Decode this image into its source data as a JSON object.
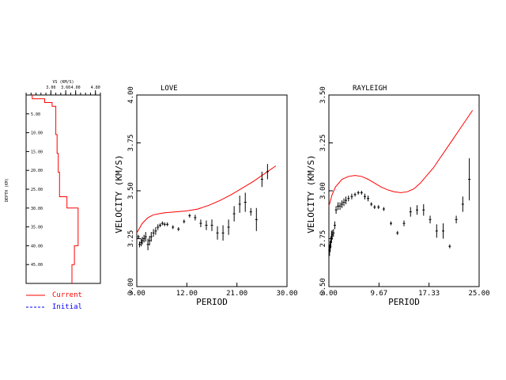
{
  "chart_data": [
    {
      "type": "line",
      "panel": "model",
      "title": "VS (KM/S)",
      "xlabel": "VS (KM/S)",
      "ylabel": "DEPTH (KM)",
      "xlim": [
        2.0,
        5.0
      ],
      "ylim": [
        0,
        50
      ],
      "x_ticks": [
        "3.00",
        "3.60",
        "4.00",
        "4.80"
      ],
      "x_tick_values": [
        3.0,
        3.6,
        4.0,
        4.8
      ],
      "y_ticks": [
        "5.00",
        "10.00",
        "15.00",
        "20.00",
        "25.00",
        "30.00",
        "35.00",
        "40.00",
        "45.00"
      ],
      "y_tick_values": [
        5,
        10,
        15,
        20,
        25,
        30,
        35,
        40,
        45
      ],
      "legend": [
        {
          "label": "Current",
          "color": "#ff0000",
          "style": "solid"
        },
        {
          "label": "Initial",
          "color": "#0000ff",
          "style": "dashed"
        }
      ],
      "series": [
        {
          "name": "Current",
          "color": "#ff0000",
          "profile": [
            [
              2.25,
              0
            ],
            [
              2.25,
              1
            ],
            [
              2.75,
              1
            ],
            [
              2.75,
              2
            ],
            [
              3.05,
              2
            ],
            [
              3.05,
              3
            ],
            [
              3.2,
              3
            ],
            [
              3.2,
              10.5
            ],
            [
              3.25,
              10.5
            ],
            [
              3.25,
              15.5
            ],
            [
              3.3,
              15.5
            ],
            [
              3.3,
              20.5
            ],
            [
              3.35,
              20.5
            ],
            [
              3.35,
              27
            ],
            [
              3.65,
              27
            ],
            [
              3.65,
              30
            ],
            [
              4.1,
              30
            ],
            [
              4.1,
              40
            ],
            [
              3.95,
              40
            ],
            [
              3.95,
              45
            ],
            [
              3.85,
              45
            ],
            [
              3.85,
              50
            ]
          ]
        }
      ]
    },
    {
      "type": "scatter",
      "panel": "love",
      "title": "LOVE",
      "xlabel": "PERIOD",
      "ylabel": "VELOCITY (KM/S)",
      "xlim": [
        3.0,
        30.0
      ],
      "ylim": [
        3.0,
        4.0
      ],
      "x_ticks": [
        "3.00",
        "12.00",
        "21.00",
        "30.00"
      ],
      "x_tick_values": [
        3.0,
        12.0,
        21.0,
        30.0
      ],
      "y_ticks": [
        "3.00",
        "3.25",
        "3.50",
        "3.75",
        "4.00"
      ],
      "y_tick_values": [
        3.0,
        3.25,
        3.5,
        3.75,
        4.0
      ],
      "model_curve": {
        "color": "#ff0000",
        "x": [
          3.0,
          4.0,
          5.0,
          6.0,
          7.0,
          8.0,
          10.0,
          12.0,
          14.0,
          16.0,
          18.0,
          20.0,
          22.0,
          24.0,
          26.0,
          28.0
        ],
        "y": [
          3.28,
          3.33,
          3.36,
          3.375,
          3.38,
          3.385,
          3.39,
          3.395,
          3.405,
          3.425,
          3.45,
          3.48,
          3.515,
          3.55,
          3.59,
          3.63
        ]
      },
      "observed": [
        {
          "x": 3.3,
          "y": 3.26,
          "err": 0.01
        },
        {
          "x": 3.5,
          "y": 3.22,
          "err": 0.015
        },
        {
          "x": 3.8,
          "y": 3.23,
          "err": 0.02
        },
        {
          "x": 4.0,
          "y": 3.24,
          "err": 0.02
        },
        {
          "x": 4.3,
          "y": 3.25,
          "err": 0.02
        },
        {
          "x": 4.6,
          "y": 3.26,
          "err": 0.025
        },
        {
          "x": 5.0,
          "y": 3.22,
          "err": 0.03
        },
        {
          "x": 5.3,
          "y": 3.24,
          "err": 0.025
        },
        {
          "x": 5.6,
          "y": 3.26,
          "err": 0.025
        },
        {
          "x": 6.0,
          "y": 3.28,
          "err": 0.02
        },
        {
          "x": 6.4,
          "y": 3.29,
          "err": 0.02
        },
        {
          "x": 6.8,
          "y": 3.31,
          "err": 0.015
        },
        {
          "x": 7.2,
          "y": 3.32,
          "err": 0.01
        },
        {
          "x": 7.6,
          "y": 3.33,
          "err": 0.01
        },
        {
          "x": 8.0,
          "y": 3.325,
          "err": 0.01
        },
        {
          "x": 8.5,
          "y": 3.325,
          "err": 0.01
        },
        {
          "x": 9.5,
          "y": 3.31,
          "err": 0.01
        },
        {
          "x": 10.5,
          "y": 3.3,
          "err": 0.01
        },
        {
          "x": 11.5,
          "y": 3.34,
          "err": 0.01
        },
        {
          "x": 12.5,
          "y": 3.37,
          "err": 0.01
        },
        {
          "x": 13.5,
          "y": 3.36,
          "err": 0.015
        },
        {
          "x": 14.5,
          "y": 3.33,
          "err": 0.02
        },
        {
          "x": 15.5,
          "y": 3.32,
          "err": 0.025
        },
        {
          "x": 16.5,
          "y": 3.32,
          "err": 0.03
        },
        {
          "x": 17.5,
          "y": 3.28,
          "err": 0.035
        },
        {
          "x": 18.5,
          "y": 3.28,
          "err": 0.04
        },
        {
          "x": 19.5,
          "y": 3.31,
          "err": 0.04
        },
        {
          "x": 20.5,
          "y": 3.38,
          "err": 0.04
        },
        {
          "x": 21.5,
          "y": 3.43,
          "err": 0.045
        },
        {
          "x": 22.5,
          "y": 3.44,
          "err": 0.05
        },
        {
          "x": 23.5,
          "y": 3.39,
          "err": 0.02
        },
        {
          "x": 24.5,
          "y": 3.35,
          "err": 0.06
        },
        {
          "x": 25.5,
          "y": 3.56,
          "err": 0.04
        },
        {
          "x": 26.5,
          "y": 3.6,
          "err": 0.04
        }
      ]
    },
    {
      "type": "scatter",
      "panel": "rayleigh",
      "title": "RAYLEIGH",
      "xlabel": "PERIOD",
      "ylabel": "VELOCITY (KM/S)",
      "xlim": [
        2.0,
        25.0
      ],
      "ylim": [
        2.5,
        3.5
      ],
      "x_ticks": [
        "2.00",
        "9.67",
        "17.33",
        "25.00"
      ],
      "x_tick_values": [
        2.0,
        9.67,
        17.33,
        25.0
      ],
      "y_ticks": [
        "2.50",
        "2.75",
        "3.00",
        "3.25",
        "3.50"
      ],
      "y_tick_values": [
        2.5,
        2.75,
        3.0,
        3.25,
        3.5
      ],
      "model_curve": {
        "color": "#ff0000",
        "x": [
          2.0,
          2.5,
          3.0,
          4.0,
          5.0,
          6.0,
          7.0,
          8.0,
          9.0,
          10.0,
          11.0,
          12.0,
          13.0,
          14.0,
          15.0,
          16.0,
          17.0,
          18.0,
          19.0,
          20.0,
          21.0,
          22.0,
          23.0,
          24.0
        ],
        "y": [
          2.92,
          2.98,
          3.02,
          3.06,
          3.075,
          3.08,
          3.075,
          3.06,
          3.04,
          3.02,
          3.005,
          2.995,
          2.99,
          2.995,
          3.01,
          3.04,
          3.08,
          3.12,
          3.17,
          3.22,
          3.27,
          3.32,
          3.37,
          3.42
        ]
      },
      "observed": [
        {
          "x": 2.1,
          "y": 2.69,
          "err": 0.03
        },
        {
          "x": 2.2,
          "y": 2.71,
          "err": 0.03
        },
        {
          "x": 2.3,
          "y": 2.73,
          "err": 0.03
        },
        {
          "x": 2.4,
          "y": 2.76,
          "err": 0.03
        },
        {
          "x": 2.5,
          "y": 2.77,
          "err": 0.025
        },
        {
          "x": 2.7,
          "y": 2.78,
          "err": 0.02
        },
        {
          "x": 2.9,
          "y": 2.82,
          "err": 0.02
        },
        {
          "x": 3.1,
          "y": 2.9,
          "err": 0.02
        },
        {
          "x": 3.4,
          "y": 2.92,
          "err": 0.02
        },
        {
          "x": 3.7,
          "y": 2.92,
          "err": 0.02
        },
        {
          "x": 4.0,
          "y": 2.93,
          "err": 0.02
        },
        {
          "x": 4.3,
          "y": 2.94,
          "err": 0.02
        },
        {
          "x": 4.6,
          "y": 2.95,
          "err": 0.02
        },
        {
          "x": 5.0,
          "y": 2.96,
          "err": 0.015
        },
        {
          "x": 5.5,
          "y": 2.97,
          "err": 0.015
        },
        {
          "x": 6.0,
          "y": 2.98,
          "err": 0.01
        },
        {
          "x": 6.5,
          "y": 2.99,
          "err": 0.01
        },
        {
          "x": 7.0,
          "y": 2.99,
          "err": 0.01
        },
        {
          "x": 7.5,
          "y": 2.97,
          "err": 0.015
        },
        {
          "x": 8.0,
          "y": 2.96,
          "err": 0.015
        },
        {
          "x": 8.5,
          "y": 2.93,
          "err": 0.01
        },
        {
          "x": 9.0,
          "y": 2.915,
          "err": 0.01
        },
        {
          "x": 9.6,
          "y": 2.915,
          "err": 0.01
        },
        {
          "x": 10.4,
          "y": 2.905,
          "err": 0.01
        },
        {
          "x": 11.5,
          "y": 2.83,
          "err": 0.01
        },
        {
          "x": 12.5,
          "y": 2.78,
          "err": 0.01
        },
        {
          "x": 13.5,
          "y": 2.83,
          "err": 0.015
        },
        {
          "x": 14.5,
          "y": 2.89,
          "err": 0.025
        },
        {
          "x": 15.5,
          "y": 2.9,
          "err": 0.025
        },
        {
          "x": 16.5,
          "y": 2.9,
          "err": 0.03
        },
        {
          "x": 17.5,
          "y": 2.85,
          "err": 0.02
        },
        {
          "x": 18.5,
          "y": 2.79,
          "err": 0.035
        },
        {
          "x": 19.5,
          "y": 2.79,
          "err": 0.04
        },
        {
          "x": 20.5,
          "y": 2.71,
          "err": 0.01
        },
        {
          "x": 21.5,
          "y": 2.85,
          "err": 0.02
        },
        {
          "x": 22.5,
          "y": 2.93,
          "err": 0.04
        },
        {
          "x": 23.5,
          "y": 3.06,
          "err": 0.11
        }
      ]
    }
  ]
}
